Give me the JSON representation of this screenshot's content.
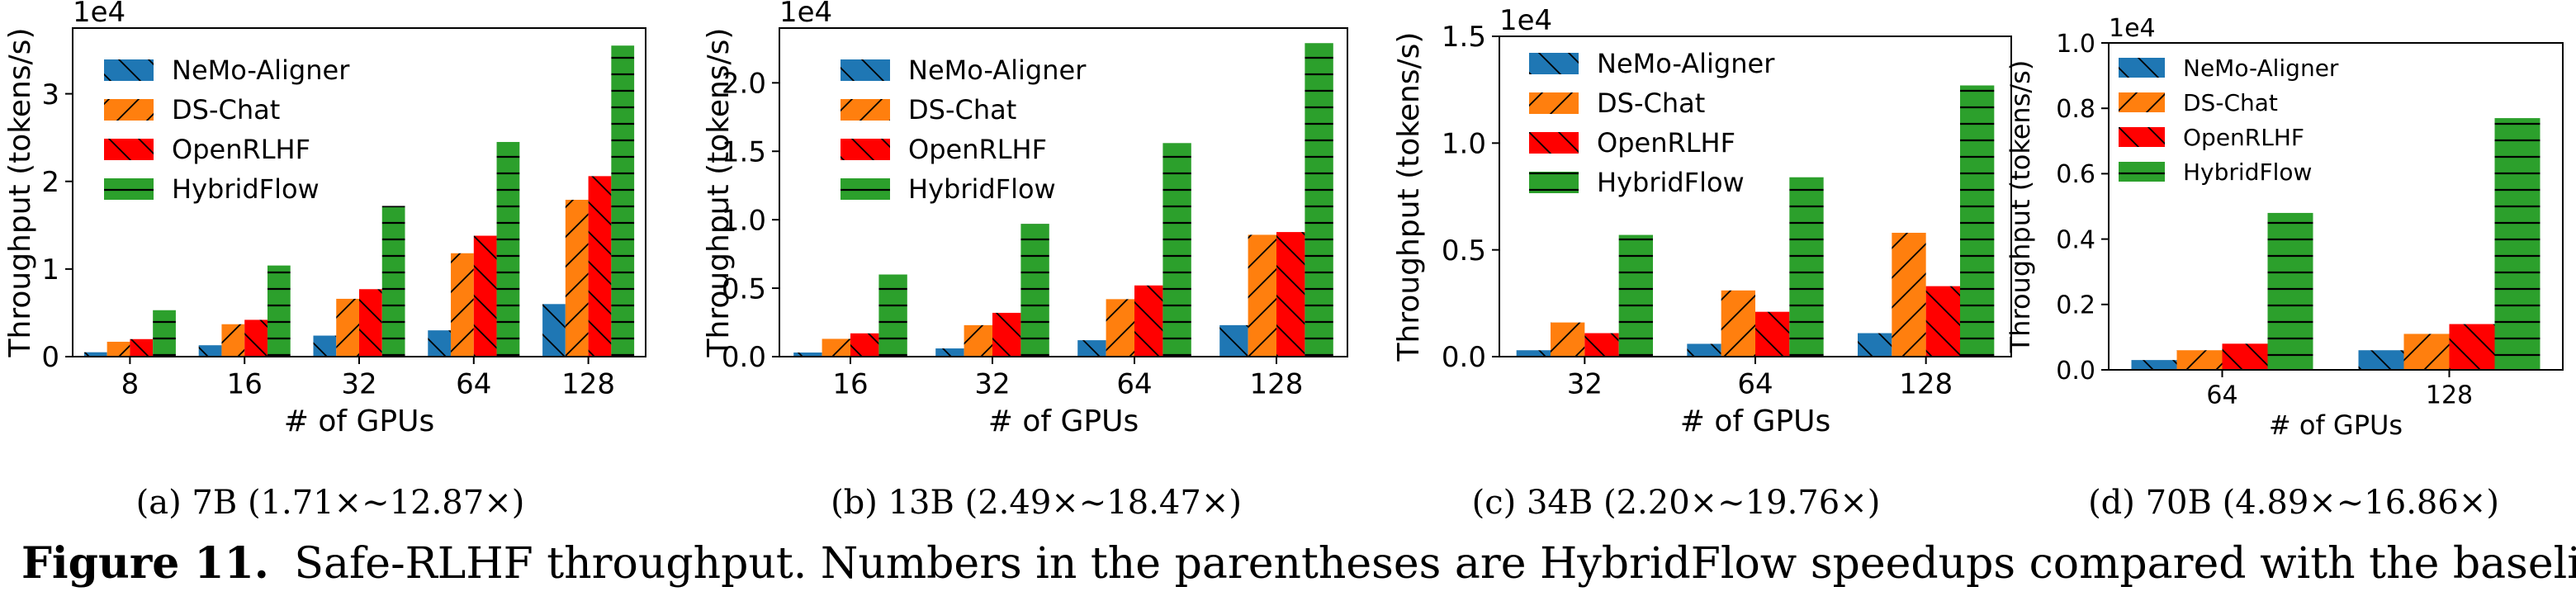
{
  "figure": {
    "number_label": "Figure 11.",
    "caption": "Safe-RLHF throughput. Numbers in the parentheses are HybridFlow speedups compared with the baselines"
  },
  "colors": {
    "NeMo-Aligner": "#1f77b4",
    "DS-Chat": "#ff7f0e",
    "OpenRLHF": "#ff0000",
    "HybridFlow": "#2ca02c"
  },
  "hatches": {
    "NeMo-Aligner": "backslash",
    "DS-Chat": "slash",
    "OpenRLHF": "backslash",
    "HybridFlow": "horizontal"
  },
  "chart_data": [
    {
      "type": "bar",
      "subcaption": "(a)  7B (1.71×∼12.87×)",
      "xlabel": "# of GPUs",
      "ylabel": "Throughput (tokens/s)",
      "scale_label": "1e4",
      "categories": [
        "8",
        "16",
        "32",
        "64",
        "128"
      ],
      "yticks": [
        0,
        1,
        2,
        3
      ],
      "ytick_labels": [
        "0",
        "1",
        "2",
        "3"
      ],
      "ylim": [
        0,
        3.75
      ],
      "legend_position": "upper-left",
      "series": [
        {
          "name": "NeMo-Aligner",
          "values": [
            0.05,
            0.13,
            0.24,
            0.3,
            0.6
          ]
        },
        {
          "name": "DS-Chat",
          "values": [
            0.17,
            0.37,
            0.66,
            1.18,
            1.79
          ]
        },
        {
          "name": "OpenRLHF",
          "values": [
            0.2,
            0.42,
            0.77,
            1.38,
            2.06
          ]
        },
        {
          "name": "HybridFlow",
          "values": [
            0.53,
            1.04,
            1.72,
            2.45,
            3.55
          ]
        }
      ]
    },
    {
      "type": "bar",
      "subcaption": "(b)  13B (2.49×∼18.47×)",
      "xlabel": "# of GPUs",
      "ylabel": "Throughput (tokens/s)",
      "scale_label": "1e4",
      "categories": [
        "16",
        "32",
        "64",
        "128"
      ],
      "yticks": [
        0,
        0.5,
        1.0,
        1.5,
        2.0
      ],
      "ytick_labels": [
        "0.0",
        "0.5",
        "1.0",
        "1.5",
        "2.0"
      ],
      "ylim": [
        0,
        2.4
      ],
      "legend_position": "upper-left",
      "series": [
        {
          "name": "NeMo-Aligner",
          "values": [
            0.03,
            0.06,
            0.12,
            0.23
          ]
        },
        {
          "name": "DS-Chat",
          "values": [
            0.13,
            0.23,
            0.42,
            0.89
          ]
        },
        {
          "name": "OpenRLHF",
          "values": [
            0.17,
            0.32,
            0.52,
            0.91
          ]
        },
        {
          "name": "HybridFlow",
          "values": [
            0.6,
            0.97,
            1.56,
            2.29
          ]
        }
      ]
    },
    {
      "type": "bar",
      "subcaption": "(c)  34B (2.20×∼19.76×)",
      "xlabel": "# of GPUs",
      "ylabel": "Throughput (tokens/s)",
      "scale_label": "1e4",
      "categories": [
        "32",
        "64",
        "128"
      ],
      "yticks": [
        0,
        0.5,
        1.0,
        1.5
      ],
      "ytick_labels": [
        "0.0",
        "0.5",
        "1.0",
        "1.5"
      ],
      "ylim": [
        0,
        1.5
      ],
      "legend_position": "upper-left",
      "series": [
        {
          "name": "NeMo-Aligner",
          "values": [
            0.03,
            0.06,
            0.11
          ]
        },
        {
          "name": "DS-Chat",
          "values": [
            0.16,
            0.31,
            0.58
          ]
        },
        {
          "name": "OpenRLHF",
          "values": [
            0.11,
            0.21,
            0.33
          ]
        },
        {
          "name": "HybridFlow",
          "values": [
            0.57,
            0.84,
            1.27
          ]
        }
      ]
    },
    {
      "type": "bar",
      "subcaption": "(d)  70B (4.89×∼16.86×)",
      "xlabel": "# of GPUs",
      "ylabel": "Throughput (tokens/s)",
      "scale_label": "1e4",
      "categories": [
        "64",
        "128"
      ],
      "yticks": [
        0,
        0.2,
        0.4,
        0.6,
        0.8,
        1.0
      ],
      "ytick_labels": [
        "0.0",
        "0.2",
        "0.4",
        "0.6",
        "0.8",
        "1.0"
      ],
      "ylim": [
        0,
        1.0
      ],
      "legend_position": "upper-left",
      "series": [
        {
          "name": "NeMo-Aligner",
          "values": [
            0.03,
            0.06
          ]
        },
        {
          "name": "DS-Chat",
          "values": [
            0.06,
            0.11
          ]
        },
        {
          "name": "OpenRLHF",
          "values": [
            0.08,
            0.14
          ]
        },
        {
          "name": "HybridFlow",
          "values": [
            0.48,
            0.77
          ]
        }
      ]
    }
  ]
}
